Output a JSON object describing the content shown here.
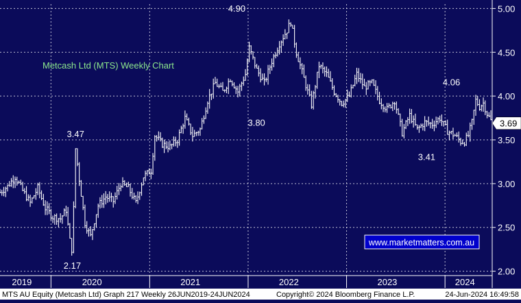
{
  "chart_data": {
    "type": "line",
    "title": "Metcash Ltd (MTS) Weekly Chart",
    "watermark": "www.marketmatters.com.au",
    "ylim": [
      1.95,
      5.05
    ],
    "y_ticks": [
      2.0,
      2.5,
      3.0,
      3.5,
      4.0,
      4.5,
      5.0
    ],
    "y_tick_labels": [
      "2.00",
      "2.50",
      "3.00",
      "3.50",
      "4.00",
      "4.50",
      "5.00"
    ],
    "x_range": [
      "2019-06-26",
      "2024-06-24"
    ],
    "x_labels": [
      {
        "label": "2019",
        "date": "2019-09-15"
      },
      {
        "label": "2020",
        "date": "2020-06-01"
      },
      {
        "label": "2021",
        "date": "2021-06-01"
      },
      {
        "label": "2022",
        "date": "2022-06-01"
      },
      {
        "label": "2023",
        "date": "2023-06-01"
      },
      {
        "label": "2024",
        "date": "2024-03-15"
      }
    ],
    "year_boundaries": [
      "2020-01-01",
      "2021-01-01",
      "2022-01-01",
      "2023-01-01",
      "2024-01-01"
    ],
    "last_price": "3.69",
    "last_value": 3.69,
    "annotations": [
      {
        "label": "3.47",
        "date": "2020-04-01",
        "value": 3.47
      },
      {
        "label": "2.17",
        "date": "2020-03-20",
        "value": 2.17
      },
      {
        "label": "4.90",
        "date": "2021-11-20",
        "value": 4.9
      },
      {
        "label": "3.80",
        "date": "2022-02-01",
        "value": 3.8
      },
      {
        "label": "3.41",
        "date": "2023-10-25",
        "value": 3.41
      },
      {
        "label": "4.06",
        "date": "2024-01-25",
        "value": 4.06
      }
    ],
    "series": [
      {
        "points": [
          [
            "2019-06-26",
            2.9
          ],
          [
            "2019-07-24",
            2.97
          ],
          [
            "2019-08-21",
            3.08
          ],
          [
            "2019-09-18",
            2.92
          ],
          [
            "2019-10-16",
            2.78
          ],
          [
            "2019-11-13",
            2.95
          ],
          [
            "2019-12-11",
            2.72
          ],
          [
            "2020-01-08",
            2.62
          ],
          [
            "2020-02-05",
            2.6
          ],
          [
            "2020-02-26",
            2.7
          ],
          [
            "2020-03-11",
            2.35
          ],
          [
            "2020-03-20",
            2.22
          ],
          [
            "2020-04-01",
            3.4
          ],
          [
            "2020-04-15",
            3.05
          ],
          [
            "2020-05-06",
            2.55
          ],
          [
            "2020-05-27",
            2.4
          ],
          [
            "2020-06-24",
            2.75
          ],
          [
            "2020-07-22",
            2.85
          ],
          [
            "2020-08-19",
            2.8
          ],
          [
            "2020-09-16",
            3.0
          ],
          [
            "2020-10-14",
            2.95
          ],
          [
            "2020-11-11",
            2.78
          ],
          [
            "2020-12-09",
            3.08
          ],
          [
            "2021-01-06",
            3.15
          ],
          [
            "2021-01-20",
            3.55
          ],
          [
            "2021-02-17",
            3.45
          ],
          [
            "2021-03-17",
            3.42
          ],
          [
            "2021-04-14",
            3.5
          ],
          [
            "2021-05-12",
            3.75
          ],
          [
            "2021-06-09",
            3.55
          ],
          [
            "2021-07-07",
            3.62
          ],
          [
            "2021-08-04",
            3.95
          ],
          [
            "2021-09-01",
            4.15
          ],
          [
            "2021-09-29",
            4.05
          ],
          [
            "2021-10-27",
            4.2
          ],
          [
            "2021-11-24",
            4.05
          ],
          [
            "2021-12-22",
            4.25
          ],
          [
            "2022-01-05",
            4.55
          ],
          [
            "2022-02-02",
            4.3
          ],
          [
            "2022-03-02",
            4.15
          ],
          [
            "2022-03-30",
            4.4
          ],
          [
            "2022-04-27",
            4.6
          ],
          [
            "2022-05-25",
            4.75
          ],
          [
            "2022-06-08",
            4.85
          ],
          [
            "2022-06-29",
            4.5
          ],
          [
            "2022-07-27",
            4.2
          ],
          [
            "2022-08-24",
            3.9
          ],
          [
            "2022-09-21",
            4.35
          ],
          [
            "2022-10-19",
            4.25
          ],
          [
            "2022-11-16",
            4.05
          ],
          [
            "2022-12-14",
            3.92
          ],
          [
            "2023-01-11",
            4.0
          ],
          [
            "2023-02-08",
            4.25
          ],
          [
            "2023-03-08",
            4.1
          ],
          [
            "2023-04-05",
            4.15
          ],
          [
            "2023-05-03",
            3.95
          ],
          [
            "2023-05-31",
            3.85
          ],
          [
            "2023-06-28",
            3.95
          ],
          [
            "2023-07-26",
            3.58
          ],
          [
            "2023-08-23",
            3.78
          ],
          [
            "2023-09-20",
            3.62
          ],
          [
            "2023-10-18",
            3.7
          ],
          [
            "2023-11-15",
            3.68
          ],
          [
            "2023-12-13",
            3.75
          ],
          [
            "2024-01-10",
            3.6
          ],
          [
            "2024-02-07",
            3.55
          ],
          [
            "2024-02-28",
            3.48
          ],
          [
            "2024-03-13",
            3.48
          ],
          [
            "2024-03-27",
            3.55
          ],
          [
            "2024-04-10",
            3.7
          ],
          [
            "2024-04-24",
            3.95
          ],
          [
            "2024-05-08",
            3.88
          ],
          [
            "2024-05-22",
            3.92
          ],
          [
            "2024-06-05",
            3.8
          ],
          [
            "2024-06-24",
            3.69
          ]
        ]
      }
    ]
  },
  "footer": {
    "left": "MTS AU Equity (Metcash Ltd) Graph 217  Weekly 26JUN2019-24JUN2024",
    "center": "Copyright© 2024 Bloomberg Finance L.P.",
    "right": "24-Jun-2024 16:49:58"
  },
  "colors": {
    "background": "#0b0b5a",
    "grid": "#ffffff",
    "price": "#ffffff",
    "title": "#8de88d",
    "watermark_bg": "#0000cc",
    "footer_bg": "#ffffff",
    "footer_text": "#000000"
  }
}
